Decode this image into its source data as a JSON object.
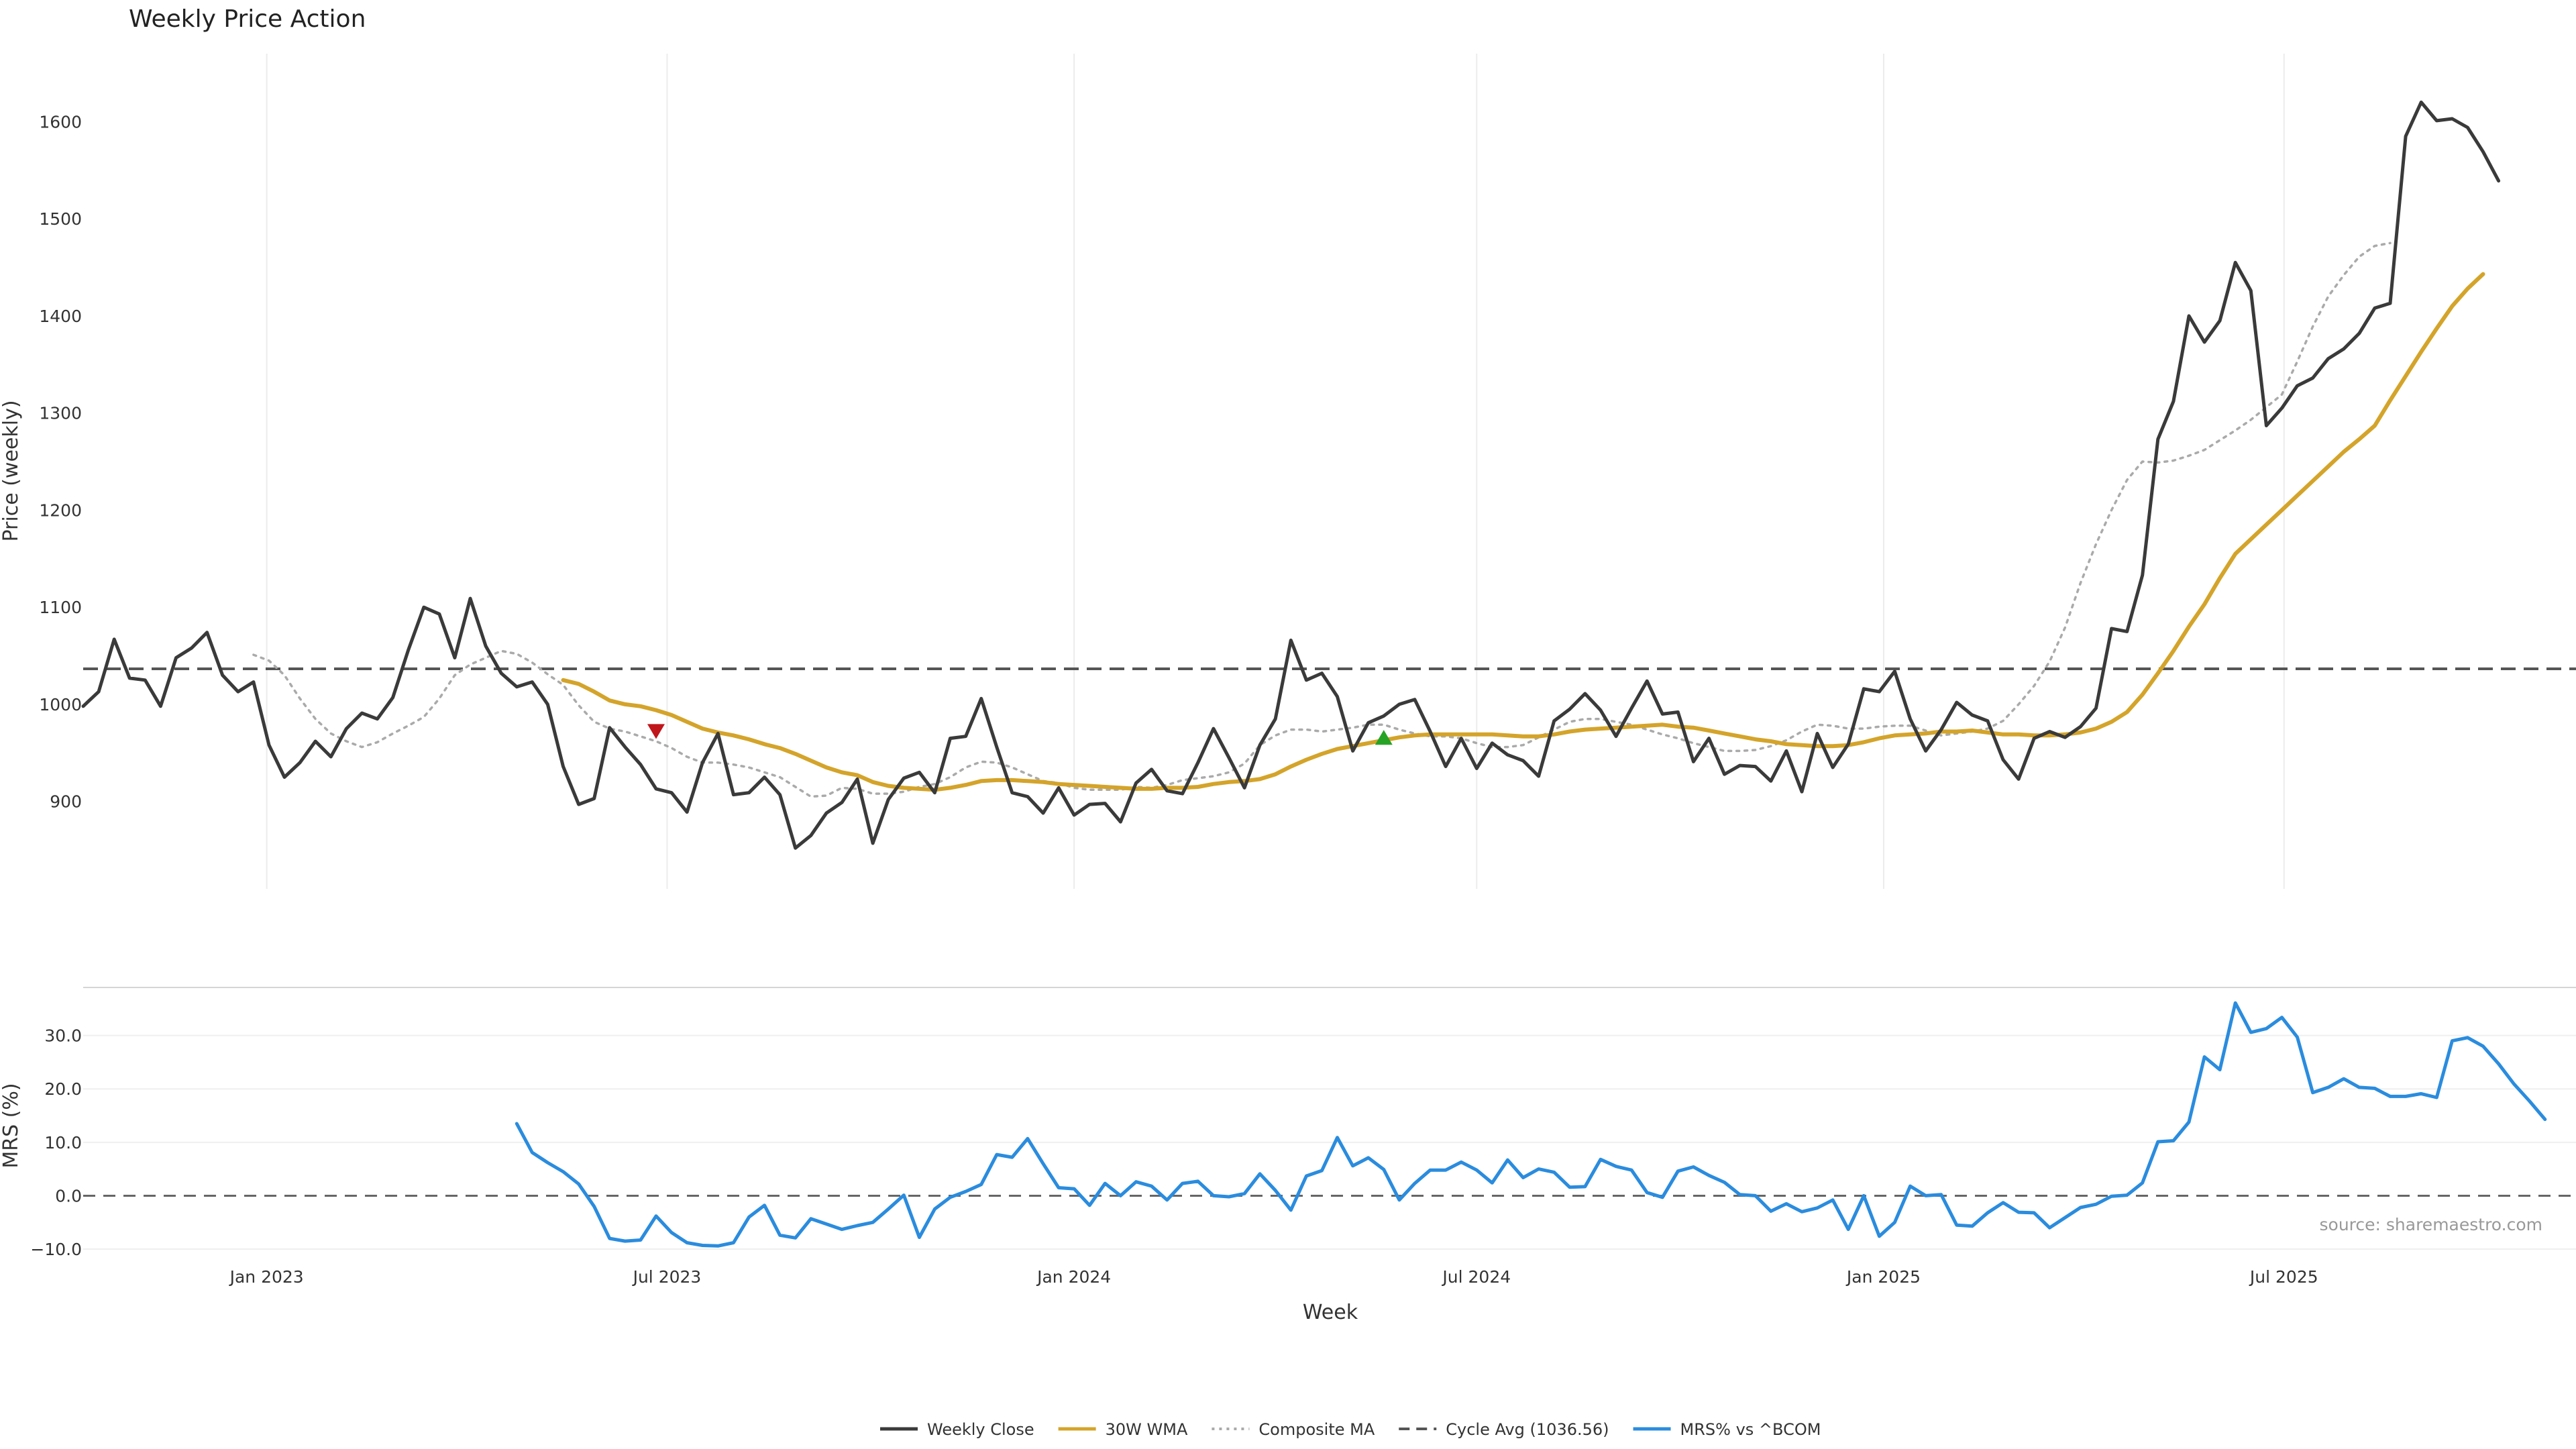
{
  "chart_data": {
    "type": "line",
    "title": "Weekly Price Action",
    "source": "source: sharemaestro.com",
    "xlabel": "Week",
    "x_range": [
      "2022-10-10",
      "2025-11-10"
    ],
    "x_ticks": [
      {
        "date": "2023-01-01",
        "label": "Jan 2023"
      },
      {
        "date": "2023-07-01",
        "label": "Jul 2023"
      },
      {
        "date": "2024-01-01",
        "label": "Jan 2024"
      },
      {
        "date": "2024-07-01",
        "label": "Jul 2024"
      },
      {
        "date": "2025-01-01",
        "label": "Jan 2025"
      },
      {
        "date": "2025-07-01",
        "label": "Jul 2025"
      }
    ],
    "price_panel": {
      "ylabel": "Price (weekly)",
      "ylim": [
        810,
        1670
      ],
      "yticks": [
        900,
        1000,
        1100,
        1200,
        1300,
        1400,
        1500,
        1600
      ],
      "grid_x": true,
      "cycle_avg": 1036.56,
      "series": [
        {
          "name": "Weekly Close",
          "color": "#3a3a3a",
          "style": "solid",
          "start": "2022-10-10",
          "values": [
            998,
            1013,
            1067,
            1027,
            1025,
            998,
            1048,
            1058,
            1074,
            1030,
            1013,
            1023,
            958,
            925,
            940,
            962,
            946,
            975,
            991,
            985,
            1007,
            1056,
            1100,
            1093,
            1048,
            1109,
            1060,
            1032,
            1018,
            1023,
            1000,
            936,
            897,
            903,
            976,
            956,
            938,
            913,
            909,
            889,
            940,
            970,
            907,
            909,
            925,
            907,
            852,
            865,
            888,
            899,
            923,
            857,
            902,
            924,
            930,
            909,
            965,
            967,
            1006,
            956,
            909,
            905,
            888,
            914,
            886,
            897,
            898,
            879,
            919,
            933,
            911,
            908,
            940,
            975,
            945,
            914,
            958,
            985,
            1066,
            1025,
            1032,
            1008,
            952,
            981,
            988,
            1000,
            1005,
            972,
            936,
            965,
            934,
            960,
            948,
            942,
            926,
            983,
            995,
            1011,
            994,
            967,
            996,
            1024,
            990,
            992,
            941,
            965,
            928,
            937,
            936,
            921,
            952,
            910,
            970,
            935,
            959,
            1016,
            1013,
            1034,
            985,
            952,
            974,
            1002,
            989,
            983,
            943,
            923,
            965,
            972,
            966,
            977,
            996,
            1078,
            1075,
            1133,
            1273,
            1312,
            1400,
            1373,
            1395,
            1455,
            1426,
            1287,
            1305,
            1328,
            1336,
            1356,
            1366,
            1382,
            1408,
            1413,
            1585,
            1620,
            1601,
            1603,
            1594,
            1569,
            1539
          ]
        },
        {
          "name": "30W WMA",
          "color": "#d4a42a",
          "style": "solid",
          "start": "2023-05-15",
          "values": [
            1025,
            1021,
            1013,
            1004,
            1000,
            998,
            994,
            989,
            982,
            975,
            971,
            968,
            964,
            959,
            955,
            949,
            942,
            935,
            930,
            927,
            920,
            916,
            914,
            913,
            912,
            914,
            917,
            921,
            922,
            922,
            921,
            920,
            918,
            917,
            916,
            915,
            914,
            913,
            913,
            914,
            914,
            915,
            918,
            920,
            921,
            923,
            928,
            936,
            943,
            949,
            954,
            957,
            960,
            963,
            966,
            968,
            969,
            969,
            969,
            969,
            969,
            968,
            967,
            967,
            969,
            972,
            974,
            975,
            976,
            977,
            978,
            979,
            977,
            976,
            973,
            970,
            967,
            964,
            962,
            959,
            958,
            957,
            957,
            958,
            961,
            965,
            968,
            969,
            970,
            972,
            972,
            973,
            971,
            969,
            969,
            968,
            968,
            969,
            971,
            975,
            982,
            992,
            1010,
            1032,
            1055,
            1080,
            1103,
            1130,
            1155,
            1170,
            1185,
            1200,
            1215,
            1230,
            1245,
            1260,
            1273,
            1287,
            1313,
            1338,
            1363,
            1387,
            1410,
            1428,
            1443
          ]
        },
        {
          "name": "Composite MA",
          "color": "#aaaaaa",
          "style": "dotted",
          "start": "2022-12-26",
          "values": [
            1051,
            1045,
            1030,
            1006,
            985,
            970,
            962,
            956,
            961,
            970,
            978,
            987,
            1006,
            1030,
            1041,
            1048,
            1055,
            1052,
            1043,
            1031,
            1020,
            999,
            982,
            975,
            972,
            967,
            962,
            955,
            946,
            940,
            940,
            938,
            935,
            930,
            925,
            915,
            905,
            906,
            914,
            913,
            908,
            908,
            910,
            915,
            918,
            925,
            935,
            941,
            940,
            935,
            928,
            921,
            919,
            914,
            912,
            912,
            912,
            915,
            914,
            917,
            922,
            924,
            926,
            930,
            939,
            958,
            968,
            974,
            974,
            972,
            974,
            976,
            979,
            979,
            974,
            970,
            967,
            967,
            965,
            960,
            956,
            956,
            958,
            966,
            974,
            982,
            985,
            985,
            982,
            979,
            974,
            969,
            965,
            960,
            956,
            952,
            952,
            953,
            957,
            963,
            972,
            979,
            978,
            975,
            975,
            977,
            978,
            978,
            973,
            968,
            970,
            972,
            975,
            983,
            1000,
            1019,
            1044,
            1079,
            1125,
            1165,
            1200,
            1231,
            1250,
            1249,
            1251,
            1256,
            1262,
            1272,
            1282,
            1293,
            1306,
            1319,
            1353,
            1389,
            1420,
            1442,
            1461,
            1472,
            1475
          ]
        }
      ],
      "markers": [
        {
          "type": "sell",
          "date": "2023-06-26",
          "value": 972,
          "color": "#c0151a"
        },
        {
          "type": "buy",
          "date": "2024-05-20",
          "value": 966,
          "color": "#26a325"
        }
      ]
    },
    "mrs_panel": {
      "ylabel": "MRS (%)",
      "ylim": [
        -11,
        39
      ],
      "yticks": [
        -10,
        0,
        10,
        20,
        30
      ],
      "ytick_labels": [
        "−10.0",
        "0.0",
        "10.0",
        "20.0",
        "30.0"
      ],
      "zero_line": 0,
      "series": [
        {
          "name": "MRS% vs ^BCOM",
          "color": "#2a8cde",
          "style": "solid",
          "start": "2023-04-24",
          "values": [
            13.5,
            8.1,
            6.2,
            4.5,
            2.2,
            -2.0,
            -8.0,
            -8.5,
            -8.3,
            -3.8,
            -6.9,
            -8.8,
            -9.3,
            -9.4,
            -8.8,
            -4.0,
            -1.8,
            -7.4,
            -7.9,
            -4.3,
            -5.3,
            -6.3,
            -5.6,
            -5.0,
            -2.5,
            0.1,
            -7.8,
            -2.5,
            -0.3,
            0.8,
            2.1,
            7.7,
            7.2,
            10.7,
            6.0,
            1.5,
            1.3,
            -1.8,
            2.3,
            0.0,
            2.6,
            1.8,
            -0.8,
            2.3,
            2.7,
            0.0,
            -0.2,
            0.4,
            4.1,
            1.0,
            -2.7,
            3.7,
            4.7,
            10.9,
            5.6,
            7.1,
            4.9,
            -0.8,
            2.3,
            4.8,
            4.8,
            6.3,
            4.8,
            2.4,
            6.7,
            3.4,
            5.0,
            4.4,
            1.6,
            1.7,
            6.8,
            5.5,
            4.8,
            0.6,
            -0.3,
            4.6,
            5.4,
            3.8,
            2.5,
            0.2,
            0.0,
            -2.9,
            -1.5,
            -3.0,
            -2.3,
            -0.8,
            -6.3,
            0.0,
            -7.6,
            -5.0,
            1.8,
            0.0,
            0.2,
            -5.5,
            -5.7,
            -3.2,
            -1.3,
            -3.1,
            -3.2,
            -6.0,
            -4.1,
            -2.2,
            -1.6,
            -0.1,
            0.1,
            2.4,
            10.1,
            10.3,
            13.8,
            26.0,
            23.6,
            36.1,
            30.6,
            31.3,
            33.4,
            29.7,
            19.3,
            20.3,
            21.9,
            20.3,
            20.1,
            18.6,
            18.6,
            19.1,
            18.4,
            29.0,
            29.6,
            28.0,
            24.7,
            20.9,
            17.7,
            14.3
          ]
        }
      ]
    },
    "legend": {
      "position": "bottom-center",
      "entries": [
        {
          "label": "Weekly Close",
          "color": "#3a3a3a",
          "style": "solid"
        },
        {
          "label": "30W WMA",
          "color": "#d4a42a",
          "style": "solid"
        },
        {
          "label": "Composite MA",
          "color": "#aaaaaa",
          "style": "dotted"
        },
        {
          "label": "Cycle Avg (1036.56)",
          "color": "#555555",
          "style": "dashed"
        },
        {
          "label": "MRS% vs ^BCOM",
          "color": "#2a8cde",
          "style": "solid"
        }
      ]
    }
  }
}
